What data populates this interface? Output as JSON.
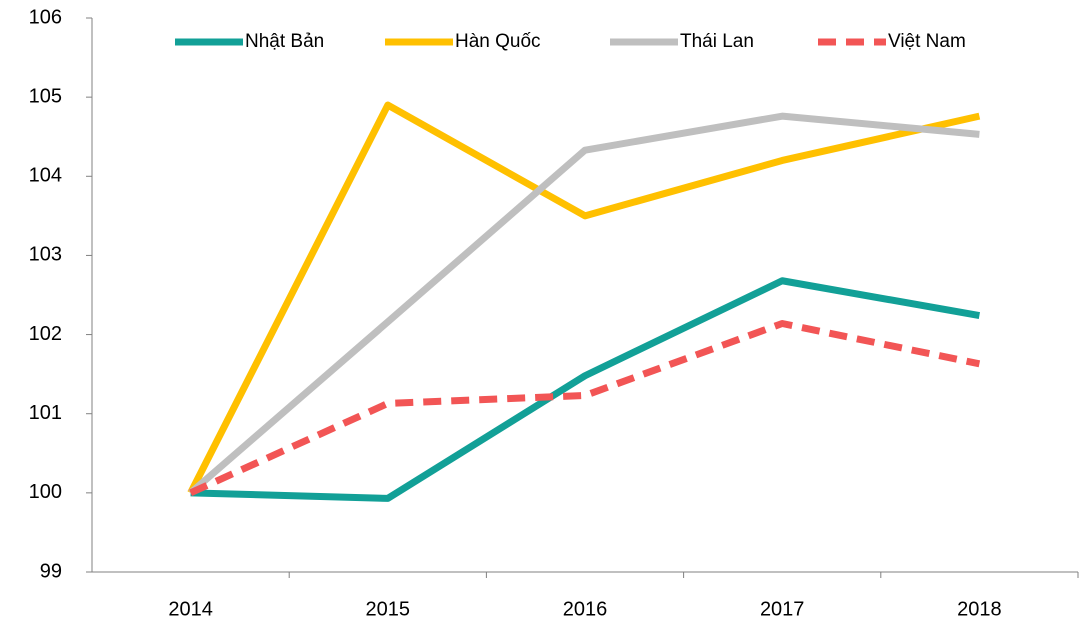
{
  "chart_data": {
    "type": "line",
    "categories": [
      "2014",
      "2015",
      "2016",
      "2017",
      "2018"
    ],
    "series": [
      {
        "name": "Nhật Bản",
        "color": "#12a097",
        "dashed": false,
        "values": [
          100,
          99.93,
          101.48,
          102.68,
          102.24
        ]
      },
      {
        "name": "Hàn Quốc",
        "color": "#ffc000",
        "dashed": false,
        "values": [
          100,
          104.9,
          103.5,
          104.2,
          104.76
        ]
      },
      {
        "name": "Thái Lan",
        "color": "#bfbfbf",
        "dashed": false,
        "values": [
          100,
          102.16,
          104.33,
          104.76,
          104.53
        ]
      },
      {
        "name": "Việt Nam",
        "color": "#f25555",
        "dashed": true,
        "values": [
          100,
          101.13,
          101.23,
          102.14,
          101.63
        ]
      }
    ],
    "ylim": [
      99,
      106
    ],
    "yticks": [
      99,
      100,
      101,
      102,
      103,
      104,
      105,
      106
    ],
    "legend": "top"
  }
}
